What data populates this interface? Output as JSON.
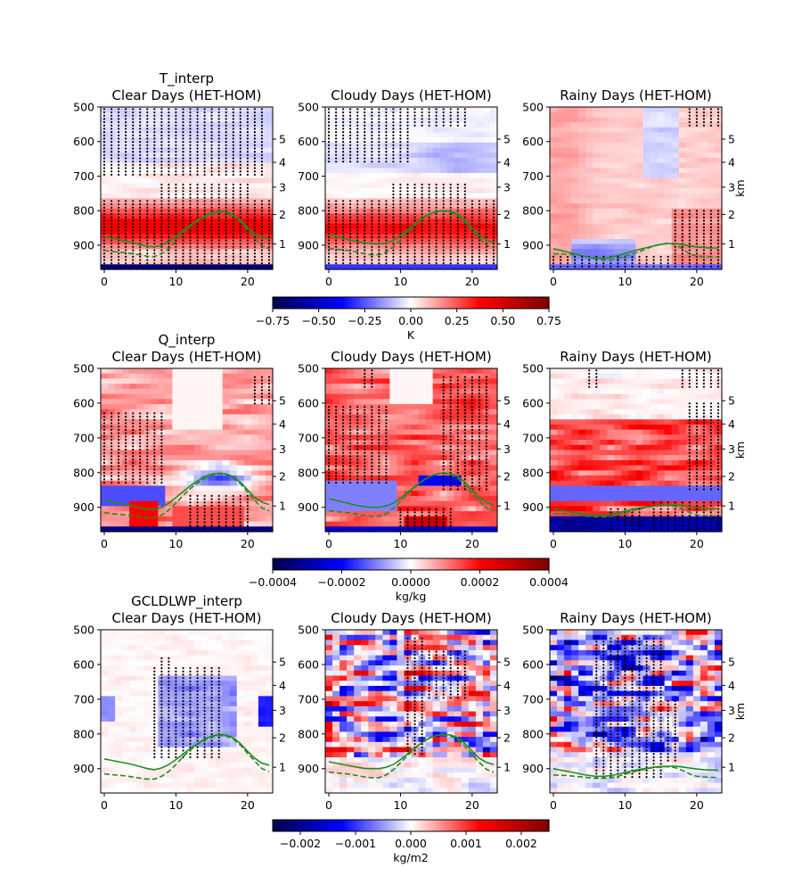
{
  "chart_data": [
    {
      "type": "heatmap",
      "variable": "T_interp",
      "colorbar": {
        "min": -0.75,
        "max": 0.75,
        "ticks": [
          "−0.75",
          "−0.50",
          "−0.25",
          "0.00",
          "0.25",
          "0.50",
          "0.75"
        ],
        "label": "K",
        "colormap": "seismic"
      },
      "xticks": [
        "0",
        "10",
        "20"
      ],
      "xlim": [
        -0.5,
        23.5
      ],
      "yticks_left": [
        "500",
        "600",
        "700",
        "800",
        "900"
      ],
      "ylim_pressure": [
        970,
        500
      ],
      "yticks_right": [
        "1",
        "2",
        "3",
        "4",
        "5"
      ],
      "right_axis_label": "km",
      "panels": [
        {
          "title": "T_interp\nClear Days (HET-HOM)",
          "pattern": "temp_clear",
          "stipple": "temp_clear",
          "solid_line": [
            875,
            880,
            884,
            888,
            893,
            898,
            903,
            905,
            900,
            890,
            875,
            858,
            842,
            828,
            815,
            806,
            802,
            803,
            812,
            828,
            850,
            868,
            878,
            883
          ],
          "dashed_line": [
            915,
            918,
            920,
            922,
            925,
            928,
            932,
            933,
            925,
            910,
            890,
            866,
            846,
            830,
            818,
            809,
            804,
            806,
            815,
            832,
            856,
            880,
            902,
            910
          ]
        },
        {
          "title": "Cloudy Days (HET-HOM)",
          "pattern": "temp_cloudy",
          "stipple": "temp_cloudy",
          "solid_line": [
            870,
            875,
            880,
            885,
            890,
            893,
            896,
            897,
            894,
            886,
            872,
            855,
            838,
            823,
            810,
            802,
            800,
            802,
            810,
            828,
            850,
            872,
            885,
            892
          ],
          "dashed_line": [
            910,
            912,
            914,
            916,
            920,
            925,
            928,
            928,
            920,
            905,
            885,
            862,
            842,
            825,
            812,
            804,
            802,
            805,
            815,
            835,
            858,
            880,
            900,
            908
          ]
        },
        {
          "title": "Rainy Days (HET-HOM)",
          "pattern": "temp_rainy",
          "stipple": "temp_rainy",
          "solid_line": [
            910,
            915,
            920,
            925,
            930,
            935,
            938,
            938,
            935,
            930,
            924,
            918,
            912,
            907,
            902,
            898,
            895,
            895,
            898,
            902,
            905,
            907,
            908,
            908
          ],
          "dashed_line": [
            925,
            925,
            926,
            928,
            930,
            935,
            940,
            943,
            942,
            938,
            932,
            925,
            918,
            910,
            902,
            897,
            894,
            898,
            910,
            925,
            932,
            933,
            934,
            934
          ]
        }
      ]
    },
    {
      "type": "heatmap",
      "variable": "Q_interp",
      "colorbar": {
        "min": -0.0004,
        "max": 0.0004,
        "ticks": [
          "−0.0004",
          "−0.0002",
          "0.0000",
          "0.0002",
          "0.0004"
        ],
        "label": "kg/kg",
        "colormap": "seismic"
      },
      "xticks": [
        "0",
        "10",
        "20"
      ],
      "xlim": [
        -0.5,
        23.5
      ],
      "yticks_left": [
        "500",
        "600",
        "700",
        "800",
        "900"
      ],
      "ylim_pressure": [
        970,
        500
      ],
      "yticks_right": [
        "1",
        "2",
        "3",
        "4",
        "5"
      ],
      "right_axis_label": "km",
      "panels": [
        {
          "title": "Q_interp\nClear Days (HET-HOM)",
          "pattern": "q_clear",
          "stipple": "q_clear",
          "solid_line": [
            880,
            884,
            888,
            892,
            897,
            902,
            906,
            906,
            900,
            888,
            872,
            855,
            838,
            824,
            812,
            804,
            802,
            804,
            812,
            828,
            850,
            872,
            885,
            892
          ],
          "dashed_line": [
            915,
            918,
            920,
            922,
            925,
            928,
            930,
            930,
            922,
            908,
            888,
            866,
            846,
            830,
            818,
            809,
            804,
            806,
            815,
            832,
            856,
            880,
            902,
            910
          ]
        },
        {
          "title": "Cloudy Days (HET-HOM)",
          "pattern": "q_cloudy",
          "stipple": "q_cloudy",
          "solid_line": [
            875,
            880,
            885,
            890,
            895,
            898,
            900,
            900,
            896,
            888,
            874,
            857,
            840,
            825,
            812,
            804,
            801,
            803,
            811,
            828,
            850,
            872,
            886,
            893
          ],
          "dashed_line": [
            910,
            912,
            914,
            916,
            920,
            924,
            926,
            926,
            918,
            903,
            883,
            862,
            842,
            825,
            812,
            804,
            803,
            806,
            817,
            836,
            860,
            882,
            902,
            910
          ]
        },
        {
          "title": "Rainy Days (HET-HOM)",
          "pattern": "q_rainy",
          "stipple": "q_rainy",
          "solid_line": [
            905,
            908,
            912,
            915,
            918,
            920,
            922,
            922,
            920,
            916,
            911,
            906,
            902,
            899,
            896,
            894,
            893,
            893,
            895,
            898,
            901,
            903,
            904,
            904
          ],
          "dashed_line": [
            918,
            918,
            920,
            922,
            924,
            926,
            928,
            928,
            926,
            922,
            916,
            910,
            905,
            900,
            897,
            895,
            894,
            897,
            905,
            915,
            922,
            924,
            925,
            925
          ]
        }
      ]
    },
    {
      "type": "heatmap",
      "variable": "GCLDLWP_interp",
      "colorbar": {
        "min": -0.0025,
        "max": 0.0025,
        "ticks": [
          "−0.002",
          "−0.001",
          "0.000",
          "0.001",
          "0.002"
        ],
        "label": "kg/m2",
        "colormap": "seismic"
      },
      "xticks": [
        "0",
        "10",
        "20"
      ],
      "xlim": [
        -0.5,
        23.5
      ],
      "yticks_left": [
        "500",
        "600",
        "700",
        "800",
        "900"
      ],
      "ylim_pressure": [
        970,
        500
      ],
      "yticks_right": [
        "1",
        "2",
        "3",
        "4",
        "5"
      ],
      "right_axis_label": "km",
      "panels": [
        {
          "title": "GCLDLWP_interp\nClear Days (HET-HOM)",
          "pattern": "lwp_clear",
          "stipple": "lwp_clear",
          "solid_line": [
            872,
            876,
            880,
            884,
            888,
            894,
            900,
            903,
            898,
            888,
            874,
            858,
            842,
            828,
            815,
            806,
            802,
            803,
            811,
            828,
            850,
            870,
            884,
            890
          ],
          "dashed_line": [
            915,
            917,
            919,
            921,
            924,
            927,
            930,
            930,
            922,
            908,
            888,
            866,
            846,
            830,
            818,
            809,
            804,
            806,
            815,
            832,
            856,
            878,
            900,
            908
          ]
        },
        {
          "title": "Cloudy Days (HET-HOM)",
          "pattern": "lwp_cloudy",
          "stipple": "lwp_cloudy",
          "solid_line": [
            880,
            884,
            888,
            892,
            896,
            899,
            900,
            900,
            896,
            888,
            874,
            857,
            840,
            825,
            812,
            804,
            801,
            803,
            811,
            828,
            850,
            870,
            882,
            888
          ],
          "dashed_line": [
            910,
            912,
            914,
            916,
            920,
            924,
            926,
            926,
            918,
            903,
            883,
            862,
            842,
            825,
            812,
            804,
            803,
            806,
            817,
            836,
            860,
            882,
            902,
            910
          ]
        },
        {
          "title": "Rainy Days (HET-HOM)",
          "pattern": "lwp_rainy",
          "stipple": "lwp_rainy",
          "solid_line": [
            900,
            904,
            908,
            912,
            916,
            920,
            922,
            922,
            920,
            916,
            911,
            906,
            902,
            899,
            896,
            894,
            893,
            893,
            895,
            898,
            901,
            903,
            904,
            904
          ],
          "dashed_line": [
            918,
            919,
            920,
            922,
            924,
            926,
            928,
            928,
            926,
            922,
            916,
            910,
            905,
            900,
            897,
            895,
            894,
            897,
            905,
            915,
            922,
            924,
            925,
            925
          ]
        }
      ]
    }
  ]
}
